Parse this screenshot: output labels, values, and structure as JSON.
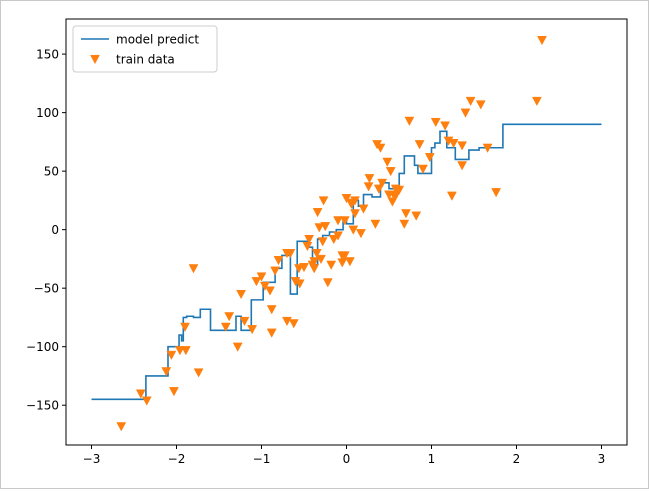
{
  "chart_data": {
    "type": "line+scatter",
    "xlim": [
      -3.3,
      3.3
    ],
    "ylim": [
      -184,
      180
    ],
    "xticks": [
      -3,
      -2,
      -1,
      0,
      1,
      2,
      3
    ],
    "yticks": [
      -150,
      -100,
      -50,
      0,
      50,
      100,
      150
    ],
    "xtick_labels": [
      "−3",
      "−2",
      "−1",
      "0",
      "1",
      "2",
      "3"
    ],
    "ytick_labels": [
      "−150",
      "−100",
      "−50",
      "0",
      "50",
      "100",
      "150"
    ],
    "grid": false,
    "legend": {
      "placement": "upper-left",
      "entries": [
        "model predict",
        "train data"
      ]
    },
    "colors": {
      "line": "#1f77b4",
      "scatter": "#ff7f0e"
    },
    "series": [
      {
        "name": "model predict",
        "type": "step-line",
        "x": [
          -3.0,
          -2.36,
          -2.36,
          -2.1,
          -2.1,
          -1.97,
          -1.97,
          -1.94,
          -1.94,
          -1.92,
          -1.92,
          -1.88,
          -1.88,
          -1.8,
          -1.8,
          -1.72,
          -1.72,
          -1.6,
          -1.6,
          -1.3,
          -1.3,
          -1.24,
          -1.24,
          -1.12,
          -1.12,
          -0.98,
          -0.98,
          -0.84,
          -0.84,
          -0.76,
          -0.76,
          -0.66,
          -0.66,
          -0.58,
          -0.58,
          -0.46,
          -0.46,
          -0.4,
          -0.4,
          -0.34,
          -0.34,
          -0.28,
          -0.28,
          -0.2,
          -0.2,
          -0.12,
          -0.12,
          -0.04,
          -0.04,
          0.0,
          0.0,
          0.08,
          0.08,
          0.14,
          0.14,
          0.2,
          0.2,
          0.3,
          0.3,
          0.4,
          0.4,
          0.5,
          0.5,
          0.62,
          0.62,
          0.68,
          0.68,
          0.8,
          0.8,
          0.84,
          0.84,
          1.0,
          1.0,
          1.04,
          1.04,
          1.1,
          1.1,
          1.18,
          1.18,
          1.28,
          1.28,
          1.44,
          1.44,
          1.56,
          1.56,
          1.84,
          1.84,
          3.0
        ],
        "y": [
          -145,
          -145,
          -125,
          -125,
          -100,
          -100,
          -90,
          -90,
          -95,
          -95,
          -75,
          -75,
          -74,
          -74,
          -75,
          -75,
          -68,
          -68,
          -86,
          -86,
          -74,
          -74,
          -86,
          -86,
          -60,
          -60,
          -45,
          -45,
          -33,
          -33,
          -22,
          -22,
          -55,
          -55,
          -10,
          -10,
          -15,
          -15,
          -30,
          -30,
          -8,
          -8,
          -5,
          -5,
          -2,
          -2,
          0,
          0,
          10,
          10,
          5,
          5,
          25,
          25,
          20,
          20,
          30,
          30,
          28,
          28,
          40,
          40,
          35,
          35,
          48,
          48,
          63,
          63,
          55,
          55,
          48,
          48,
          70,
          70,
          74,
          74,
          84,
          84,
          70,
          70,
          60,
          60,
          68,
          68,
          70,
          70,
          90,
          90
        ]
      },
      {
        "name": "train data",
        "type": "scatter",
        "marker": "triangle-down",
        "x": [
          -2.65,
          -2.42,
          -2.35,
          -2.12,
          -2.03,
          -2.06,
          -1.96,
          -1.9,
          -1.89,
          -1.8,
          -1.74,
          -1.42,
          -1.38,
          -1.24,
          -1.2,
          -1.11,
          -1.06,
          -0.96,
          -0.88,
          -0.88,
          -0.84,
          -0.8,
          -0.66,
          -0.62,
          -0.55,
          -0.5,
          -0.46,
          -0.4,
          -0.38,
          -0.35,
          -0.34,
          -0.32,
          -0.3,
          -0.27,
          -0.22,
          -0.18,
          -0.15,
          -0.1,
          -0.05,
          -0.05,
          -0.02,
          0.0,
          0.06,
          0.08,
          0.1,
          0.2,
          0.26,
          0.27,
          0.34,
          0.36,
          0.38,
          0.4,
          0.48,
          0.52,
          0.54,
          0.57,
          0.6,
          0.62,
          0.7,
          0.74,
          0.82,
          0.86,
          0.9,
          0.98,
          1.05,
          1.16,
          1.24,
          1.36,
          1.4,
          1.46,
          1.58,
          1.66,
          1.76,
          2.24,
          2.3,
          -0.28,
          -0.6,
          -0.7,
          -0.38,
          -0.44,
          -0.25,
          -0.1,
          0.05,
          0.17,
          0.5,
          0.58,
          0.04,
          -0.02,
          0.1,
          1.26,
          1.36,
          1.2,
          -0.7,
          -0.9,
          0.42,
          0.58,
          -1.0,
          -1.28,
          -0.56,
          0.68
        ],
        "y": [
          -168,
          -140,
          -146,
          -121,
          -138,
          -107,
          -103,
          -83,
          -103,
          -33,
          -122,
          -83,
          -74,
          -55,
          -78,
          -85,
          -44,
          -48,
          -68,
          -88,
          -35,
          -26,
          -20,
          -80,
          -46,
          -32,
          -14,
          -30,
          -33,
          -20,
          15,
          2,
          -25,
          25,
          -45,
          -30,
          -8,
          -5,
          -28,
          -22,
          8,
          27,
          22,
          0,
          14,
          18,
          37,
          44,
          5,
          73,
          35,
          70,
          58,
          50,
          24,
          28,
          33,
          34,
          14,
          93,
          12,
          73,
          52,
          62,
          92,
          89,
          29,
          55,
          100,
          110,
          107,
          70,
          32,
          110,
          162,
          -10,
          -44,
          -20,
          -27,
          -8,
          3,
          8,
          23,
          -3,
          30,
          30,
          -27,
          -22,
          25,
          74,
          72,
          76,
          -78,
          -52,
          40,
          35,
          -40,
          -100,
          -33,
          5
        ]
      }
    ]
  }
}
